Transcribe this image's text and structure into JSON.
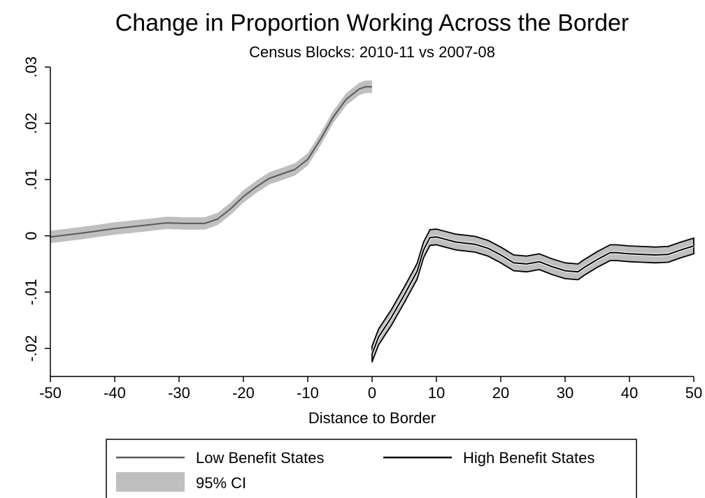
{
  "chart_data": {
    "type": "line",
    "title": "Change in Proportion Working Across the Border",
    "subtitle": "Census Blocks: 2010-11 vs 2007-08",
    "xlabel": "Distance to Border",
    "ylabel": "",
    "xlim": [
      -50,
      50
    ],
    "ylim": [
      -0.025,
      0.03
    ],
    "xticks": [
      -50,
      -40,
      -30,
      -20,
      -10,
      0,
      10,
      20,
      30,
      40,
      50
    ],
    "xtick_labels": [
      "-50",
      "-40",
      "-30",
      "-20",
      "-10",
      "0",
      "10",
      "20",
      "30",
      "40",
      "50"
    ],
    "yticks": [
      -0.02,
      -0.01,
      0,
      0.01,
      0.02,
      0.03
    ],
    "ytick_labels": [
      "-.02",
      "-.01",
      "0",
      ".01",
      ".02",
      ".03"
    ],
    "grid": false,
    "legend_position": "bottom",
    "colors": {
      "low_line": "#595959",
      "high_line": "#000000",
      "ci_fill": "#bfbfbf"
    },
    "series": [
      {
        "name": "Low Benefit States",
        "style": "gray",
        "x": [
          -50,
          -45,
          -40,
          -35,
          -32,
          -29,
          -26,
          -24,
          -22,
          -20,
          -18,
          -16,
          -14,
          -12,
          -10,
          -8,
          -6,
          -4,
          -2,
          -1,
          0
        ],
        "y": [
          -0.0002,
          0.0005,
          0.0013,
          0.0019,
          0.0023,
          0.0022,
          0.0022,
          0.003,
          0.0048,
          0.007,
          0.0087,
          0.0102,
          0.011,
          0.0118,
          0.0136,
          0.0172,
          0.0212,
          0.0243,
          0.0261,
          0.0265,
          0.0265
        ],
        "ci_half_width": 0.0011
      },
      {
        "name": "High Benefit States",
        "style": "black",
        "x": [
          0,
          1,
          3,
          5,
          7,
          8,
          9,
          10,
          13,
          16,
          18,
          20,
          22,
          24,
          26,
          28,
          30,
          32,
          33,
          35,
          37,
          38,
          40,
          42,
          44,
          46,
          48,
          50
        ],
        "y": [
          -0.021,
          -0.018,
          -0.0145,
          -0.0105,
          -0.0063,
          -0.0025,
          -0.0003,
          -0.0002,
          -0.0011,
          -0.0015,
          -0.0022,
          -0.0034,
          -0.0048,
          -0.005,
          -0.0046,
          -0.0055,
          -0.0062,
          -0.0064,
          -0.0056,
          -0.0042,
          -0.003,
          -0.003,
          -0.0032,
          -0.0033,
          -0.0034,
          -0.0033,
          -0.0025,
          -0.0018
        ],
        "ci_half_width": 0.0014
      }
    ],
    "legend": {
      "entries": [
        {
          "label": "Low Benefit States",
          "kind": "line",
          "style": "gray"
        },
        {
          "label": "High Benefit States",
          "kind": "line",
          "style": "black"
        },
        {
          "label": "95% CI",
          "kind": "area",
          "style": "ci"
        }
      ]
    }
  }
}
